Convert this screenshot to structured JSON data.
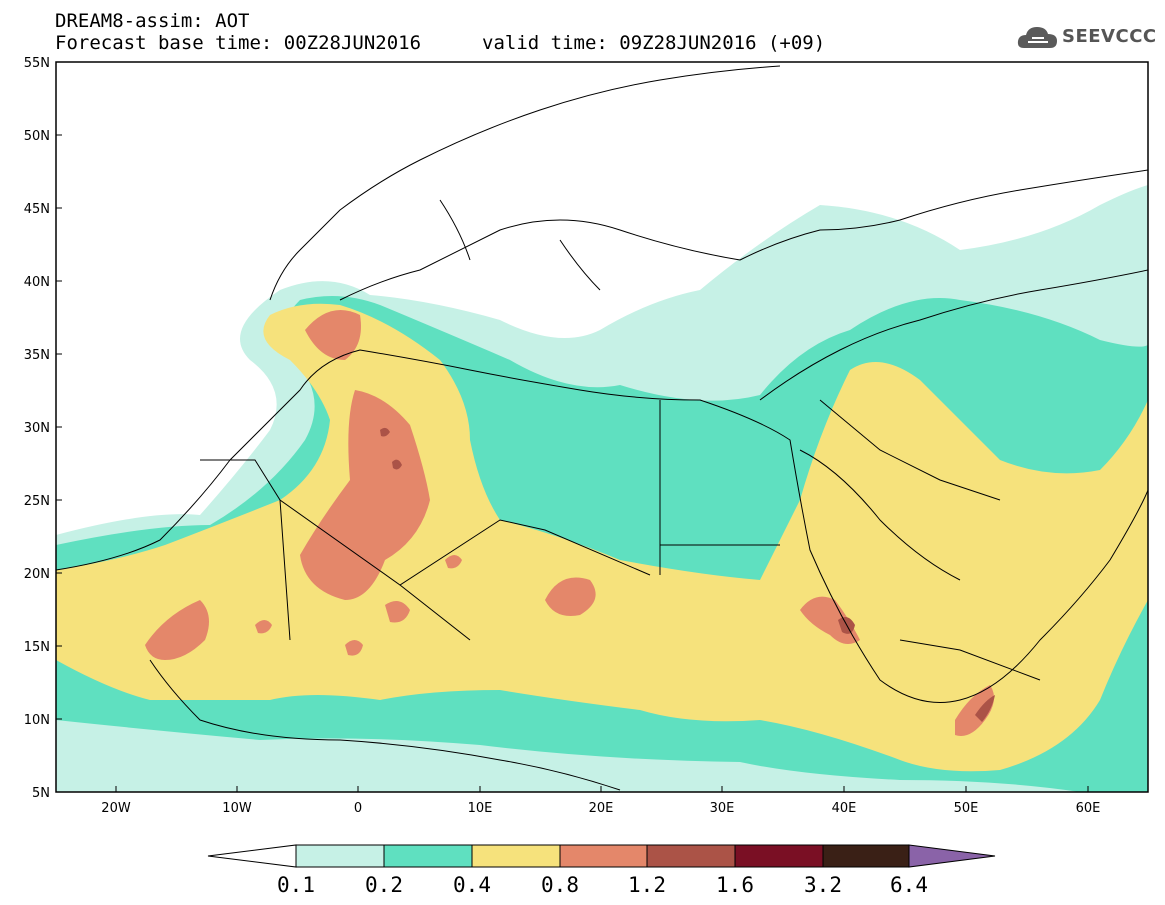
{
  "header": {
    "title_line1": "DREAM8-assim: AOT",
    "title_line2": "Forecast base time: 00Z28JUN2016",
    "valid_time": "valid time: 09Z28JUN2016 (+09)",
    "logo_text": "SEEVCCC",
    "logo_icon": "cloud-icon"
  },
  "map": {
    "lat_labels": [
      "55N",
      "50N",
      "45N",
      "40N",
      "35N",
      "30N",
      "25N",
      "20N",
      "15N",
      "10N",
      "5N"
    ],
    "lon_labels": [
      "20W",
      "10W",
      "0",
      "10E",
      "20E",
      "30E",
      "40E",
      "50E",
      "60E"
    ]
  },
  "colorbar": {
    "labels": [
      "0.1",
      "0.2",
      "0.4",
      "0.8",
      "1.2",
      "1.6",
      "3.2",
      "6.4"
    ],
    "colors": [
      "#ffffff",
      "#c6f1e6",
      "#5fe0c0",
      "#f6e27c",
      "#e4876a",
      "#ab5347",
      "#7a0f24",
      "#3a2016",
      "#8a63a8"
    ]
  }
}
